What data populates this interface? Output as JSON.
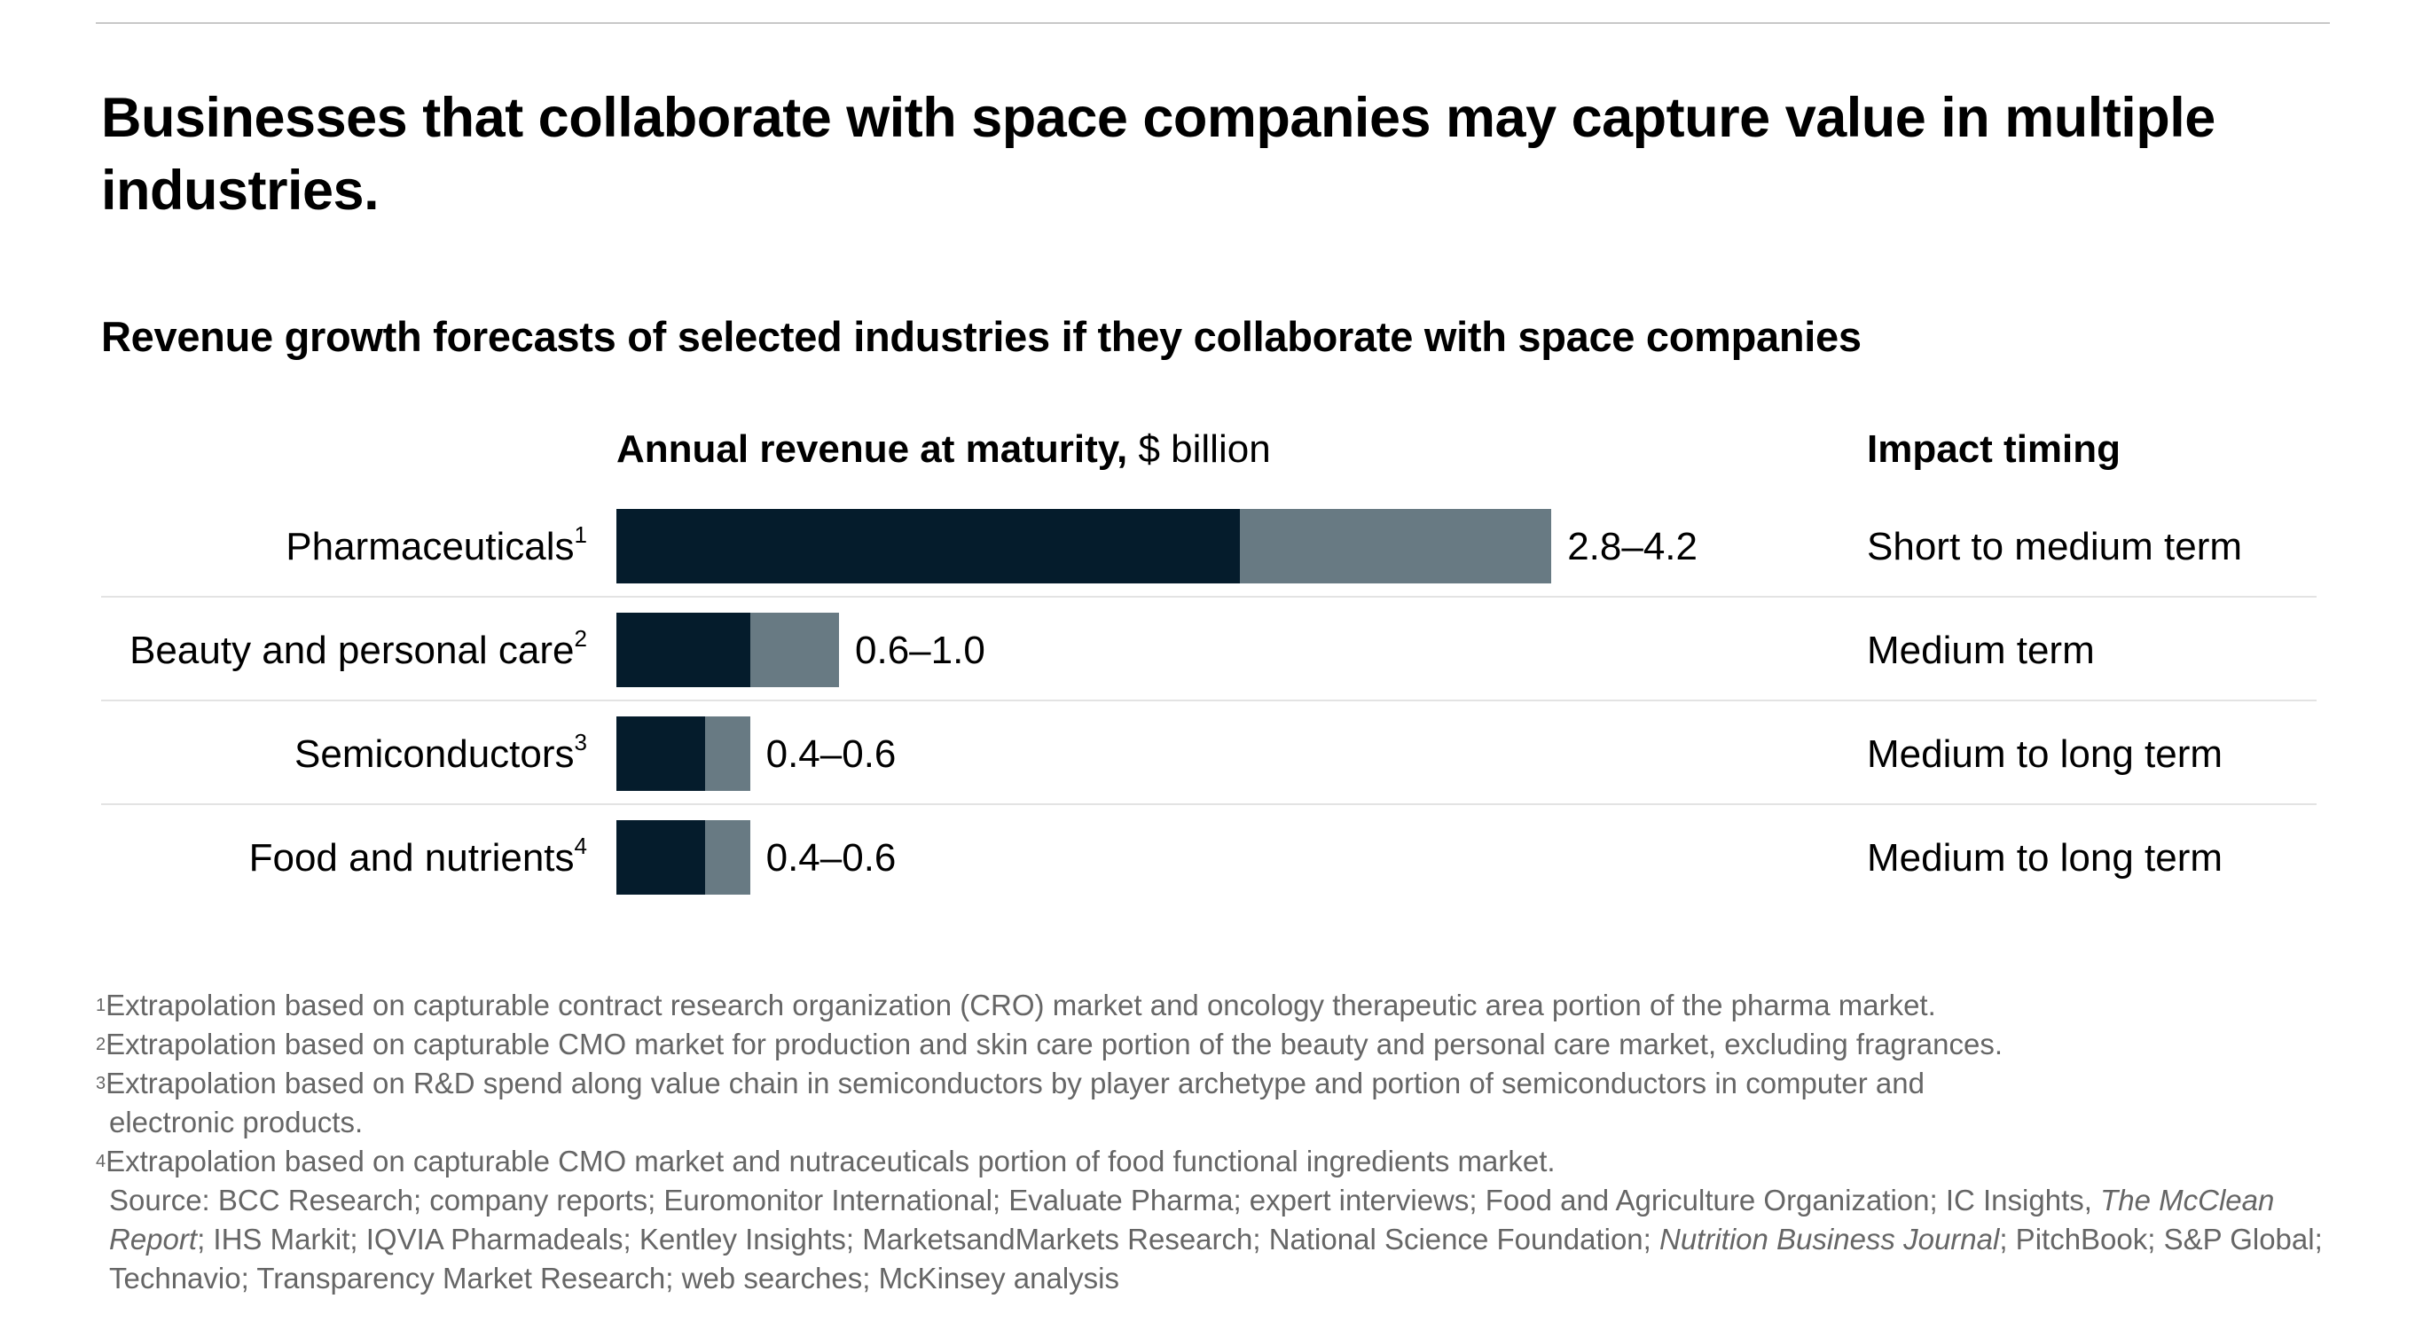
{
  "title": "Businesses that collaborate with space companies may capture value in multiple industries.",
  "subtitle": "Revenue growth forecasts of selected industries if they collaborate with space companies",
  "header_bold": "Annual revenue at maturity,",
  "header_unit": "$ billion",
  "impact_header": "Impact timing",
  "colors": {
    "low": "#051c2c",
    "range": "#687a83"
  },
  "chart_data": {
    "type": "bar",
    "orientation": "horizontal",
    "stacked_range": true,
    "categories": [
      "Pharmaceuticals",
      "Beauty and personal care",
      "Semiconductors",
      "Food and nutrients"
    ],
    "footnote_marks": [
      "1",
      "2",
      "3",
      "4"
    ],
    "series": [
      {
        "values": [
          2.8,
          0.6,
          0.4,
          0.4
        ]
      },
      {
        "values": [
          4.2,
          1.0,
          0.6,
          0.6
        ]
      }
    ],
    "data_labels": [
      "2.8–4.2",
      "0.6–1.0",
      "0.4–0.6",
      "0.4–0.6"
    ],
    "impact_timing": [
      "Short to medium term",
      "Medium term",
      "Medium to long term",
      "Medium to long term"
    ],
    "xlabel": "Annual revenue at maturity, $ billion",
    "grid": false
  },
  "footnotes": [
    {
      "mark": "1",
      "text": "Extrapolation based on capturable contract research organization (CRO) market and oncology therapeutic area portion of the pharma market."
    },
    {
      "mark": "2",
      "text": "Extrapolation based on capturable CMO market for production and skin care portion of the beauty and personal care market, excluding fragrances."
    },
    {
      "mark": "3",
      "text": "Extrapolation based on R&D spend along value chain in semiconductors by player archetype and portion of semiconductors in computer and",
      "cont": "electronic products."
    },
    {
      "mark": "4",
      "text": "Extrapolation based on capturable CMO market and nutraceuticals portion of food functional ingredients market."
    }
  ],
  "source": {
    "p1": "Source: BCC Research; company reports; Euromonitor International; Evaluate Pharma; expert interviews; Food and Agriculture Organization; IC Insights, ",
    "i1": "The McClean Report",
    "p2": "; IHS Markit; IQVIA Pharmadeals; Kentley Insights; MarketsandMarkets Research; National Science Foundation; ",
    "i2": "Nutrition Business Journal",
    "p3": "; PitchBook; S&P Global; Technavio; Transparency Market Research; web searches; McKinsey analysis"
  }
}
